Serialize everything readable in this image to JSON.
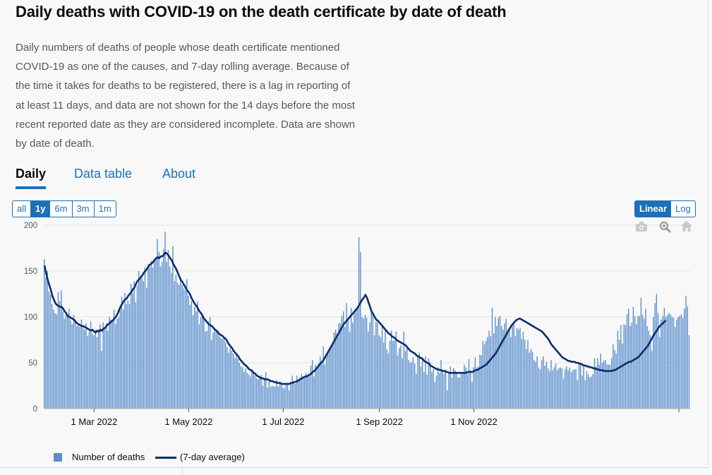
{
  "header": {
    "title": "Daily deaths with COVID-19 on the death certificate by date of death",
    "description": "Daily numbers of deaths of people whose death certificate mentioned COVID-19 as one of the causes, and 7-day rolling average. Because of the time it takes for deaths to be registered, there is a lag in reporting of at least 11 days, and data are not shown for the 14 days before the most recent reported date as they are considered incomplete. Data are shown by date of death."
  },
  "tabs": [
    {
      "label": "Daily",
      "active": true
    },
    {
      "label": "Data table",
      "active": false
    },
    {
      "label": "About",
      "active": false
    }
  ],
  "range_buttons": [
    {
      "label": "all",
      "selected": false
    },
    {
      "label": "1y",
      "selected": true
    },
    {
      "label": "6m",
      "selected": false
    },
    {
      "label": "3m",
      "selected": false
    },
    {
      "label": "1m",
      "selected": false
    }
  ],
  "scale_buttons": [
    {
      "label": "Linear",
      "selected": true
    },
    {
      "label": "Log",
      "selected": false
    }
  ],
  "modebar": [
    "camera-icon",
    "zoom-icon",
    "home-icon"
  ],
  "colors": {
    "bars": "#5a8fcc",
    "line": "#0b2e6e",
    "grid": "#e4e4e4",
    "axis_text": "#505a5f",
    "accent": "#1d70b8"
  },
  "chart_data": {
    "type": "bar",
    "start_date": "2022-01-28",
    "xlabel": "",
    "ylabel": "",
    "ylim": [
      0,
      200
    ],
    "y_ticks": [
      "0",
      "50",
      "100",
      "150",
      "200"
    ],
    "x_ticks": [
      {
        "label": "1 Mar 2022",
        "date": "2022-03-01"
      },
      {
        "label": "1 May 2022",
        "date": "2022-05-01"
      },
      {
        "label": "1 Jul 2022",
        "date": "2022-07-01"
      },
      {
        "label": "1 Sep 2022",
        "date": "2022-09-01"
      },
      {
        "label": "1 Nov 2022",
        "date": "2022-11-01"
      }
    ],
    "legend": [
      {
        "label": "Number of deaths",
        "kind": "bar"
      },
      {
        "label": "(7-day average)",
        "kind": "line"
      }
    ],
    "series": [
      {
        "name": "Number of deaths",
        "kind": "bar",
        "values": [
          163,
          143,
          150,
          128,
          124,
          114,
          108,
          104,
          103,
          127,
          117,
          129,
          106,
          98,
          102,
          103,
          109,
          96,
          92,
          102,
          95,
          90,
          92,
          89,
          97,
          89,
          86,
          93,
          79,
          84,
          95,
          82,
          80,
          86,
          78,
          86,
          92,
          63,
          94,
          86,
          93,
          85,
          100,
          97,
          96,
          108,
          92,
          98,
          100,
          110,
          122,
          108,
          126,
          114,
          118,
          114,
          136,
          126,
          139,
          116,
          134,
          150,
          143,
          142,
          139,
          154,
          132,
          157,
          154,
          161,
          154,
          162,
          162,
          185,
          171,
          155,
          160,
          174,
          193,
          160,
          173,
          155,
          148,
          177,
          139,
          146,
          137,
          135,
          139,
          135,
          131,
          129,
          141,
          123,
          113,
          117,
          102,
          111,
          106,
          117,
          92,
          100,
          103,
          99,
          84,
          85,
          95,
          100,
          75,
          83,
          88,
          86,
          84,
          79,
          77,
          76,
          77,
          72,
          67,
          61,
          66,
          63,
          60,
          55,
          58,
          54,
          50,
          46,
          45,
          40,
          44,
          39,
          37,
          35,
          43,
          39,
          36,
          33,
          32,
          34,
          37,
          25,
          34,
          40,
          23,
          30,
          24,
          25,
          24,
          24,
          31,
          24,
          28,
          26,
          23,
          22,
          28,
          27,
          20,
          28,
          36,
          28,
          27,
          36,
          32,
          34,
          38,
          33,
          35,
          39,
          37,
          35,
          47,
          53,
          35,
          48,
          46,
          50,
          57,
          49,
          68,
          48,
          59,
          62,
          63,
          66,
          71,
          83,
          86,
          82,
          93,
          93,
          101,
          106,
          89,
          115,
          98,
          84,
          110,
          94,
          104,
          107,
          111,
          187,
          171,
          100,
          98,
          102,
          99,
          84,
          94,
          106,
          102,
          80,
          95,
          94,
          80,
          78,
          90,
          72,
          87,
          65,
          60,
          74,
          85,
          74,
          74,
          84,
          58,
          66,
          69,
          55,
          84,
          63,
          66,
          53,
          50,
          51,
          56,
          49,
          38,
          56,
          61,
          46,
          56,
          40,
          57,
          37,
          55,
          50,
          40,
          43,
          29,
          36,
          45,
          39,
          53,
          41,
          38,
          43,
          20,
          38,
          46,
          34,
          44,
          42,
          40,
          34,
          34,
          38,
          39,
          48,
          45,
          38,
          54,
          42,
          29,
          45,
          56,
          45,
          46,
          59,
          58,
          74,
          70,
          74,
          78,
          85,
          79,
          110,
          82,
          100,
          90,
          99,
          101,
          90,
          86,
          93,
          98,
          86,
          87,
          78,
          90,
          93,
          79,
          88,
          86,
          88,
          76,
          84,
          75,
          65,
          75,
          61,
          65,
          62,
          53,
          51,
          57,
          45,
          43,
          53,
          57,
          47,
          51,
          44,
          41,
          53,
          42,
          45,
          49,
          42,
          44,
          45,
          44,
          33,
          43,
          46,
          42,
          45,
          40,
          42,
          43,
          43,
          31,
          48,
          49,
          36,
          48,
          31,
          41,
          37,
          34,
          35,
          38,
          55,
          46,
          55,
          48,
          60,
          50,
          52,
          53,
          48,
          48,
          48,
          55,
          70,
          64,
          60,
          85,
          75,
          91,
          71,
          92,
          91,
          103,
          109,
          90,
          94,
          111,
          101,
          92,
          101,
          101,
          121,
          102,
          98,
          109,
          90,
          85,
          80,
          63,
          100,
          115,
          125,
          104,
          78,
          97,
          101,
          110,
          100,
          102,
          104,
          103,
          100,
          99,
          89,
          97,
          100,
          101,
          103,
          99,
          109,
          123,
          111,
          80
        ]
      },
      {
        "name": "7-day average",
        "kind": "line",
        "values": [
          156,
          148,
          141,
          135,
          130,
          123,
          119,
          115,
          113,
          112,
          111,
          111,
          109,
          106,
          104,
          101,
          100,
          99,
          98,
          97,
          95,
          93,
          92,
          91,
          90,
          90,
          89,
          88,
          87,
          86,
          85,
          86,
          84,
          83,
          85,
          84,
          86,
          85,
          87,
          88,
          90,
          92,
          93,
          95,
          96,
          98,
          100,
          103,
          107,
          111,
          114,
          117,
          119,
          120,
          123,
          125,
          127,
          130,
          132,
          136,
          139,
          141,
          143,
          145,
          148,
          150,
          152,
          155,
          157,
          158,
          160,
          162,
          164,
          165,
          164,
          166,
          166,
          168,
          170,
          169,
          167,
          164,
          162,
          158,
          155,
          152,
          148,
          144,
          140,
          138,
          135,
          132,
          129,
          127,
          124,
          120,
          117,
          114,
          112,
          109,
          106,
          104,
          101,
          98,
          96,
          94,
          92,
          91,
          90,
          88,
          86,
          85,
          83,
          81,
          80,
          79,
          77,
          76,
          73,
          70,
          68,
          66,
          63,
          61,
          59,
          57,
          54,
          52,
          50,
          48,
          47,
          45,
          43,
          42,
          41,
          39,
          38,
          36,
          35,
          34,
          33,
          33,
          32,
          32,
          32,
          31,
          30,
          30,
          29,
          29,
          28,
          28,
          28,
          27,
          27,
          27,
          27,
          27,
          27,
          28,
          28,
          29,
          29,
          30,
          31,
          32,
          33,
          34,
          35,
          35,
          36,
          37,
          38,
          40,
          41,
          43,
          45,
          47,
          49,
          51,
          53,
          56,
          59,
          62,
          65,
          68,
          71,
          74,
          77,
          80,
          83,
          86,
          89,
          92,
          94,
          96,
          98,
          100,
          102,
          104,
          106,
          108,
          110,
          113,
          116,
          119,
          121,
          124,
          121,
          116,
          111,
          106,
          103,
          100,
          97,
          96,
          94,
          92,
          90,
          88,
          86,
          84,
          82,
          81,
          79,
          78,
          77,
          75,
          74,
          73,
          72,
          71,
          70,
          69,
          67,
          65,
          63,
          62,
          61,
          60,
          58,
          57,
          56,
          55,
          54,
          52,
          51,
          50,
          49,
          47,
          46,
          45,
          44,
          43,
          43,
          42,
          42,
          41,
          41,
          40,
          40,
          39,
          39,
          39,
          39,
          39,
          39,
          39,
          39,
          39,
          39,
          39,
          39,
          40,
          40,
          40,
          40,
          41,
          42,
          42,
          43,
          44,
          45,
          46,
          47,
          48,
          50,
          52,
          54,
          56,
          58,
          60,
          63,
          66,
          69,
          72,
          75,
          78,
          81,
          84,
          87,
          90,
          92,
          94,
          96,
          97,
          98,
          98,
          97,
          96,
          95,
          94,
          93,
          92,
          91,
          90,
          89,
          88,
          87,
          86,
          85,
          84,
          82,
          80,
          78,
          76,
          73,
          70,
          68,
          66,
          64,
          62,
          60,
          58,
          56,
          55,
          54,
          53,
          52,
          52,
          51,
          51,
          51,
          50,
          50,
          49,
          49,
          48,
          47,
          47,
          46,
          46,
          45,
          45,
          44,
          44,
          43,
          43,
          42,
          42,
          42,
          41,
          41,
          41,
          41,
          41,
          41,
          42,
          42,
          43,
          44,
          45,
          46,
          47,
          48,
          49,
          50,
          51,
          51,
          52,
          53,
          54,
          55,
          56,
          58,
          60,
          62,
          64,
          66,
          68,
          71,
          74,
          77,
          80,
          83,
          85,
          88,
          90,
          92,
          93,
          95,
          96
        ]
      }
    ]
  }
}
